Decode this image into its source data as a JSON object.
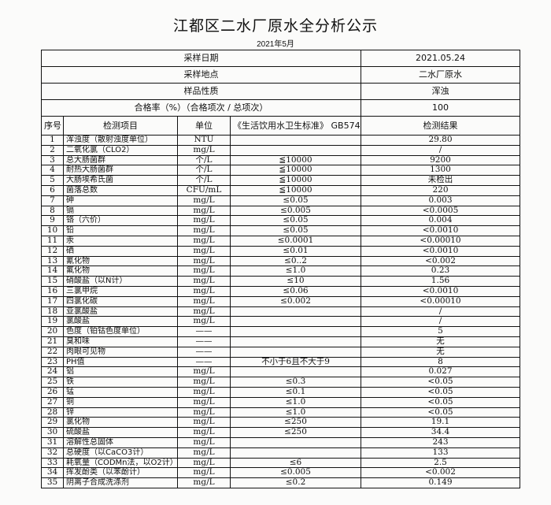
{
  "title": "江都区二水厂原水全分析公示",
  "subtitle": "2021年5月",
  "meta": [
    {
      "label": "采样日期",
      "value": "2021.05.24"
    },
    {
      "label": "采样地点",
      "value": "二水厂原水"
    },
    {
      "label": "样品性质",
      "value": "浑浊"
    },
    {
      "label": "合格率（%）（合格项次 / 总项次）",
      "value": "100"
    }
  ],
  "headers": {
    "no": "序号",
    "item": "检测项目",
    "unit": "单位",
    "standard": "《生活饮用水卫生标准》 GB5749",
    "result": "检测结果"
  },
  "rows": [
    [
      "1",
      "浑浊度（散射浊度单位）",
      "NTU",
      "",
      "29.80"
    ],
    [
      "2",
      "二氧化氯（CLO2）",
      "mg/L",
      "",
      "/"
    ],
    [
      "3",
      "总大肠菌群",
      "个/L",
      "≦10000",
      "9200"
    ],
    [
      "4",
      "耐热大肠菌群",
      "个/L",
      "≦10000",
      "1300"
    ],
    [
      "5",
      "大肠埃希氏菌",
      "个/L",
      "≦10000",
      "未检出"
    ],
    [
      "6",
      "菌落总数",
      "CFU/mL",
      "≦10000",
      "220"
    ],
    [
      "7",
      "砷",
      "mg/L",
      "≤0.05",
      "0.003"
    ],
    [
      "8",
      "镉",
      "mg/L",
      "≤0.005",
      "<0.0005"
    ],
    [
      "9",
      "铬（六价）",
      "mg/L",
      "≤0.05",
      "0.004"
    ],
    [
      "10",
      "铅",
      "mg/L",
      "≤0.05",
      "<0.0010"
    ],
    [
      "11",
      "汞",
      "mg/L",
      "≤0.0001",
      "<0.00010"
    ],
    [
      "12",
      "硒",
      "mg/L",
      "≤0.01",
      "<0.0010"
    ],
    [
      "13",
      "氰化物",
      "mg/L",
      "≤0..2",
      "<0.002"
    ],
    [
      "14",
      "氟化物",
      "mg/L",
      "≤1.0",
      "0.23"
    ],
    [
      "15",
      "硝酸盐（以N计）",
      "mg/L",
      "≤10",
      "1.56"
    ],
    [
      "16",
      "三氯甲烷",
      "mg/L",
      "≤0.06",
      "<0.0010"
    ],
    [
      "17",
      "四氯化碳",
      "mg/L",
      "≤0.002",
      "<0.00010"
    ],
    [
      "18",
      "亚氯酸盐",
      "mg/L",
      "",
      "/"
    ],
    [
      "19",
      "氯酸盐",
      "mg/L",
      "",
      "/"
    ],
    [
      "20",
      "色度（铂钴色度单位）",
      "——",
      "",
      "5"
    ],
    [
      "21",
      "臭和味",
      "——",
      "",
      "无"
    ],
    [
      "22",
      "肉眼可见物",
      "——",
      "",
      "无"
    ],
    [
      "23",
      "PH值",
      "——",
      "不小于6且不大于9",
      "8"
    ],
    [
      "24",
      "铝",
      "mg/L",
      "",
      "0.027"
    ],
    [
      "25",
      "铁",
      "mg/L",
      "≤0.3",
      "<0.05"
    ],
    [
      "26",
      "锰",
      "mg/L",
      "≤0.1",
      "<0.05"
    ],
    [
      "27",
      "铜",
      "mg/L",
      "≤1.0",
      "<0.05"
    ],
    [
      "28",
      "锌",
      "mg/L",
      "≤1.0",
      "<0.05"
    ],
    [
      "29",
      "氯化物",
      "mg/L",
      "≤250",
      "19.1"
    ],
    [
      "30",
      "硫酸盐",
      "mg/L",
      "≤250",
      "34.4"
    ],
    [
      "31",
      "溶解性总固体",
      "mg/L",
      "",
      "243"
    ],
    [
      "32",
      "总硬度（以CaCO3计）",
      "mg/L",
      "",
      "133"
    ],
    [
      "33",
      "耗氧量（CODMn法，以O2计）",
      "mg/L",
      "≤6",
      "2.5"
    ],
    [
      "34",
      "挥发酚类（以苯酚计）",
      "mg/L",
      "≤0.005",
      "<0.002"
    ],
    [
      "35",
      "阴离子合成洗涤剂",
      "mg/L",
      "≤0.2",
      "0.149"
    ]
  ]
}
